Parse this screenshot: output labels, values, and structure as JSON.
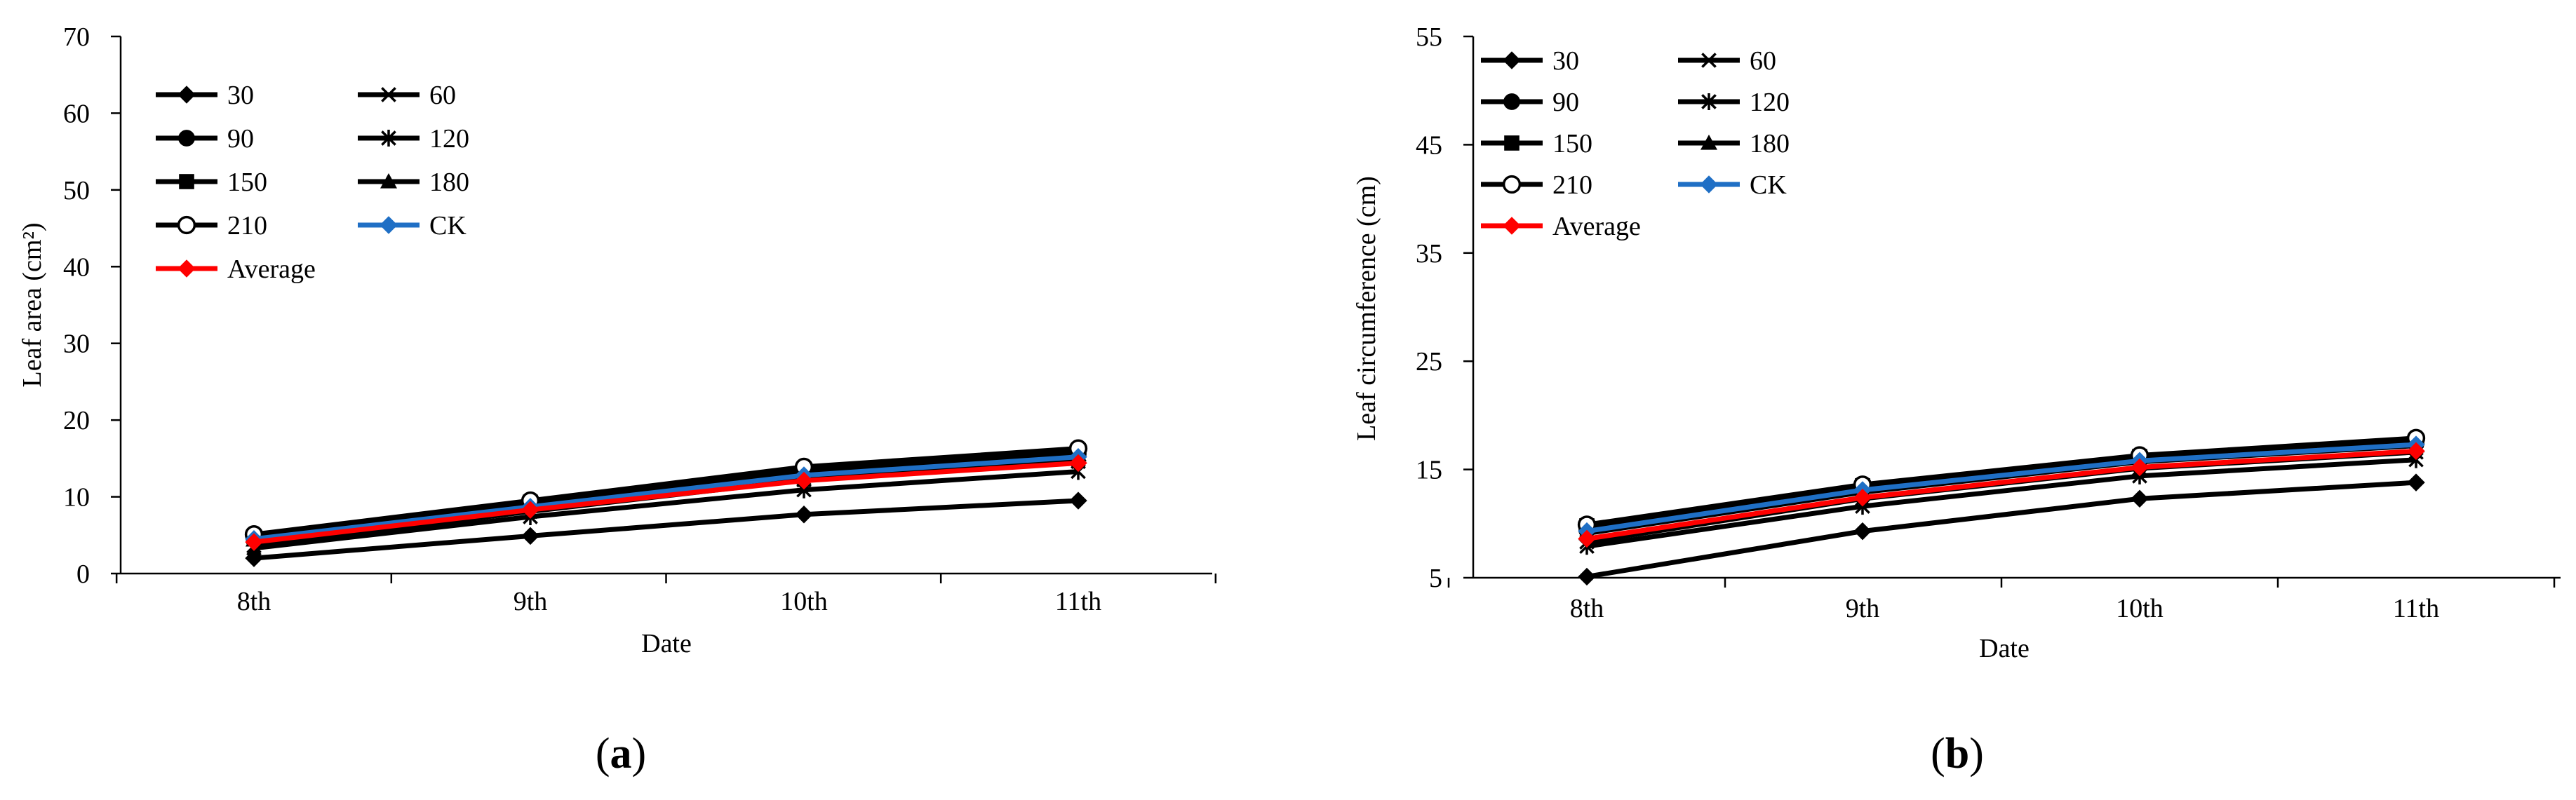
{
  "chart_data": [
    {
      "type": "line",
      "panel_label": "(a)",
      "panel_letter": "a",
      "xlabel": "Date",
      "ylabel": "Leaf area (cm²)",
      "categories": [
        "8th",
        "9th",
        "10th",
        "11th"
      ],
      "ylim": [
        0,
        70
      ],
      "yticks": [
        0,
        10,
        20,
        30,
        40,
        50,
        60,
        70
      ],
      "grid": false,
      "legend_position": "top-left",
      "series": [
        {
          "name": "30",
          "marker": "diamond-filled",
          "color": "#000000",
          "values": [
            2.0,
            4.9,
            7.7,
            9.5
          ]
        },
        {
          "name": "60",
          "marker": "x",
          "color": "#000000",
          "values": [
            3.6,
            8.1,
            12.2,
            14.6
          ]
        },
        {
          "name": "90",
          "marker": "circle-filled",
          "color": "#000000",
          "values": [
            4.6,
            9.0,
            13.2,
            15.6
          ]
        },
        {
          "name": "120",
          "marker": "star",
          "color": "#000000",
          "values": [
            3.3,
            7.4,
            10.9,
            13.3
          ]
        },
        {
          "name": "150",
          "marker": "square-filled",
          "color": "#000000",
          "values": [
            4.8,
            9.3,
            13.6,
            16.0
          ]
        },
        {
          "name": "180",
          "marker": "triangle-filled",
          "color": "#000000",
          "values": [
            4.4,
            8.9,
            13.1,
            15.5
          ]
        },
        {
          "name": "210",
          "marker": "circle-open",
          "color": "#000000",
          "values": [
            5.1,
            9.5,
            13.9,
            16.3
          ]
        },
        {
          "name": "CK",
          "marker": "diamond-filled",
          "color": "#1f6fc5",
          "values": [
            4.5,
            8.7,
            12.8,
            15.2
          ]
        },
        {
          "name": "Average",
          "marker": "diamond-filled",
          "color": "#ff0000",
          "values": [
            4.1,
            8.3,
            12.1,
            14.4
          ]
        }
      ]
    },
    {
      "type": "line",
      "panel_label": "(b)",
      "panel_letter": "b",
      "xlabel": "Date",
      "ylabel": "Leaf circumference (cm)",
      "categories": [
        "8th",
        "9th",
        "10th",
        "11th"
      ],
      "ylim": [
        5,
        55
      ],
      "yticks": [
        5,
        15,
        25,
        35,
        45,
        55
      ],
      "grid": false,
      "legend_position": "top-left",
      "series": [
        {
          "name": "30",
          "marker": "diamond-filled",
          "color": "#000000",
          "values": [
            5.1,
            9.3,
            12.3,
            13.8
          ]
        },
        {
          "name": "60",
          "marker": "x",
          "color": "#000000",
          "values": [
            8.3,
            12.3,
            15.1,
            16.6
          ]
        },
        {
          "name": "90",
          "marker": "circle-filled",
          "color": "#000000",
          "values": [
            9.4,
            13.2,
            15.9,
            17.4
          ]
        },
        {
          "name": "120",
          "marker": "star",
          "color": "#000000",
          "values": [
            7.9,
            11.6,
            14.4,
            15.9
          ]
        },
        {
          "name": "150",
          "marker": "square-filled",
          "color": "#000000",
          "values": [
            9.8,
            13.5,
            16.2,
            17.7
          ]
        },
        {
          "name": "180",
          "marker": "triangle-filled",
          "color": "#000000",
          "values": [
            9.1,
            12.9,
            15.7,
            17.2
          ]
        },
        {
          "name": "210",
          "marker": "circle-open",
          "color": "#000000",
          "values": [
            9.9,
            13.6,
            16.3,
            17.9
          ]
        },
        {
          "name": "CK",
          "marker": "diamond-filled",
          "color": "#1f6fc5",
          "values": [
            9.3,
            13.1,
            15.8,
            17.3
          ]
        },
        {
          "name": "Average",
          "marker": "diamond-filled",
          "color": "#ff0000",
          "values": [
            8.6,
            12.4,
            15.2,
            16.7
          ]
        }
      ]
    }
  ]
}
